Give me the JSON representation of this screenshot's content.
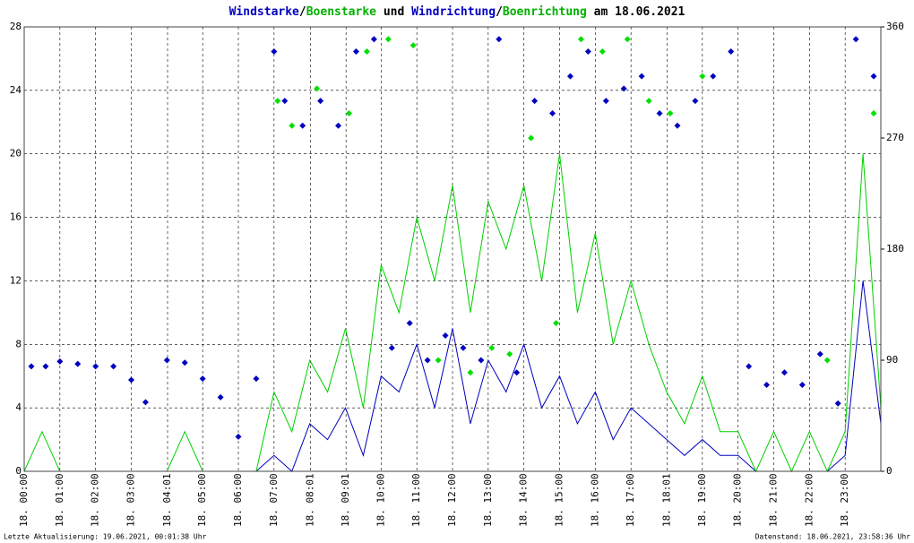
{
  "chart_data": {
    "type": "wind",
    "title_parts": [
      {
        "text": "Windstarke",
        "color": "#0000c0"
      },
      {
        "text": "/",
        "color": "#000000"
      },
      {
        "text": "Boenstarke",
        "color": "#00b000"
      },
      {
        "text": " und ",
        "color": "#000000"
      },
      {
        "text": "Windrichtung",
        "color": "#0000c0"
      },
      {
        "text": "/",
        "color": "#000000"
      },
      {
        "text": "Boenrichtung",
        "color": "#00b000"
      },
      {
        "text": " am 18.06.2021",
        "color": "#000000"
      }
    ],
    "footer_left": "Letzte Aktualisierung: 19.06.2021, 00:01:38 Uhr",
    "footer_right": "Datenstand: 18.06.2021, 23:58:36 Uhr",
    "xlim": [
      0,
      24
    ],
    "xticks": [
      {
        "value": 0,
        "label": "18. 00:00"
      },
      {
        "value": 1,
        "label": "18. 01:00"
      },
      {
        "value": 2,
        "label": "18. 02:00"
      },
      {
        "value": 3,
        "label": "18. 03:00"
      },
      {
        "value": 4.0167,
        "label": "18. 04:01"
      },
      {
        "value": 5,
        "label": "18. 05:00"
      },
      {
        "value": 6,
        "label": "18. 06:00"
      },
      {
        "value": 7,
        "label": "18. 07:00"
      },
      {
        "value": 8.0167,
        "label": "18. 08:01"
      },
      {
        "value": 9.0167,
        "label": "18. 09:01"
      },
      {
        "value": 10,
        "label": "18. 10:00"
      },
      {
        "value": 11,
        "label": "18. 11:00"
      },
      {
        "value": 12,
        "label": "18. 12:00"
      },
      {
        "value": 13,
        "label": "18. 13:00"
      },
      {
        "value": 14,
        "label": "18. 14:00"
      },
      {
        "value": 15,
        "label": "18. 15:00"
      },
      {
        "value": 16,
        "label": "18. 16:00"
      },
      {
        "value": 17,
        "label": "18. 17:00"
      },
      {
        "value": 18.0167,
        "label": "18. 18:01"
      },
      {
        "value": 19,
        "label": "18. 19:00"
      },
      {
        "value": 20,
        "label": "18. 20:00"
      },
      {
        "value": 21,
        "label": "18. 21:00"
      },
      {
        "value": 22,
        "label": "18. 22:00"
      },
      {
        "value": 23,
        "label": "18. 23:00"
      }
    ],
    "ylim": [
      0,
      28
    ],
    "yticks": [
      0,
      4,
      8,
      12,
      16,
      20,
      24,
      28
    ],
    "y2lim": [
      0,
      360
    ],
    "y2ticks": [
      0,
      90,
      180,
      270,
      360
    ],
    "grid": true,
    "series": [
      {
        "name": "Windstarke",
        "kind": "line",
        "color": "#0000c0",
        "x": [
          0,
          0.5,
          1,
          1.5,
          2,
          2.5,
          3,
          3.5,
          4,
          4.5,
          5,
          5.5,
          6,
          6.5,
          7,
          7.5,
          8,
          8.5,
          9,
          9.5,
          10,
          10.5,
          11,
          11.5,
          12,
          12.5,
          13,
          13.5,
          14,
          14.5,
          15,
          15.5,
          16,
          16.5,
          17,
          17.5,
          18,
          18.5,
          19,
          19.5,
          20,
          20.5,
          21,
          21.5,
          22,
          22.5,
          23,
          23.5,
          24
        ],
        "values": [
          0,
          0,
          0,
          0,
          0,
          0,
          0,
          0,
          0,
          0,
          0,
          0,
          0,
          0,
          1,
          0,
          3,
          2,
          4,
          1,
          6,
          5,
          8,
          4,
          9,
          3,
          7,
          5,
          8,
          4,
          6,
          3,
          5,
          2,
          4,
          3,
          2,
          1,
          2,
          1,
          1,
          0,
          0,
          0,
          0,
          0,
          1,
          12,
          3
        ]
      },
      {
        "name": "Boenstarke",
        "kind": "line",
        "color": "#00d000",
        "x": [
          0,
          0.5,
          1,
          1.5,
          2,
          2.5,
          3,
          3.5,
          4,
          4.5,
          5,
          5.5,
          6,
          6.5,
          7,
          7.5,
          8,
          8.5,
          9,
          9.5,
          10,
          10.5,
          11,
          11.5,
          12,
          12.5,
          13,
          13.5,
          14,
          14.5,
          15,
          15.5,
          16,
          16.5,
          17,
          17.5,
          18,
          18.5,
          19,
          19.5,
          20,
          20.5,
          21,
          21.5,
          22,
          22.5,
          23,
          23.5,
          24
        ],
        "values": [
          0,
          2.5,
          0,
          0,
          0,
          0,
          0,
          0,
          0,
          2.5,
          0,
          0,
          0,
          0,
          5,
          2.5,
          7,
          5,
          9,
          4,
          13,
          10,
          16,
          12,
          18,
          10,
          17,
          14,
          18,
          12,
          20,
          10,
          15,
          8,
          12,
          8,
          5,
          3,
          6,
          2.5,
          2.5,
          0,
          2.5,
          0,
          2.5,
          0,
          2.5,
          20,
          4
        ]
      },
      {
        "name": "Windrichtung",
        "kind": "points",
        "axis": "y2",
        "color": "#0000c0",
        "x": [
          0.2,
          0.6,
          1.0,
          1.5,
          2.0,
          2.5,
          3.0,
          3.4,
          4.0,
          4.5,
          5.0,
          5.5,
          6.0,
          6.5,
          7.0,
          7.3,
          7.8,
          8.3,
          8.8,
          9.3,
          9.8,
          10.3,
          10.8,
          11.3,
          11.8,
          12.3,
          12.8,
          13.3,
          13.8,
          14.3,
          14.8,
          15.3,
          15.8,
          16.3,
          16.8,
          17.3,
          17.8,
          18.3,
          18.8,
          19.3,
          19.8,
          20.3,
          20.8,
          21.3,
          21.8,
          22.3,
          22.8,
          23.3,
          23.8
        ],
        "values": [
          85,
          85,
          89,
          87,
          85,
          85,
          74,
          56,
          90,
          88,
          75,
          60,
          28,
          75,
          340,
          300,
          280,
          300,
          280,
          340,
          350,
          100,
          120,
          90,
          110,
          100,
          90,
          350,
          80,
          300,
          290,
          320,
          340,
          300,
          310,
          320,
          290,
          280,
          300,
          320,
          340,
          85,
          70,
          80,
          70,
          95,
          55,
          350,
          320
        ]
      },
      {
        "name": "Boenrichtung",
        "kind": "points",
        "axis": "y2",
        "color": "#00e000",
        "x": [
          7.1,
          7.5,
          8.2,
          9.1,
          9.6,
          10.2,
          10.9,
          11.6,
          12.5,
          13.1,
          13.6,
          14.2,
          14.9,
          15.6,
          16.2,
          16.9,
          17.5,
          18.1,
          19.0,
          22.5,
          23.8
        ],
        "values": [
          300,
          280,
          310,
          290,
          340,
          350,
          345,
          90,
          80,
          100,
          95,
          270,
          120,
          350,
          340,
          350,
          300,
          290,
          320,
          90,
          290
        ]
      }
    ]
  }
}
